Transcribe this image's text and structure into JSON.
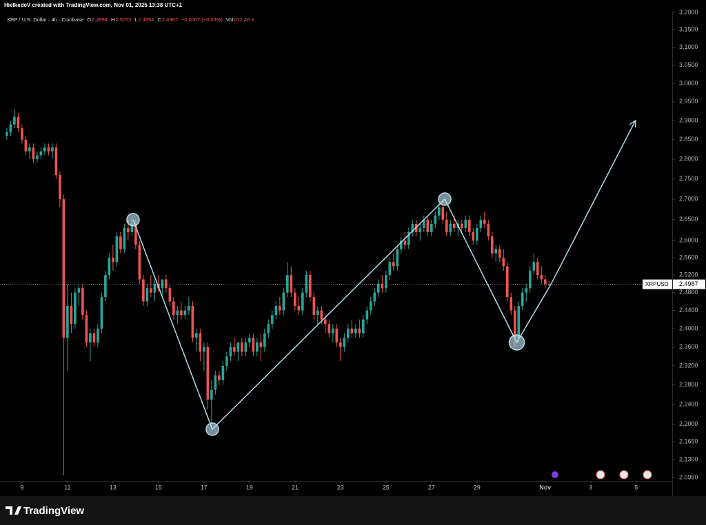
{
  "chart_data": {
    "type": "candlestick",
    "watermark": "HielkedeV created with TradingView.com, Nov 01, 2025 13:38 UTC+1",
    "title": "XRP / U.S. Dollar · 4h · Coinbase",
    "ohlc_labels": [
      "O",
      "H",
      "L",
      "C"
    ],
    "change": "−0.0007 (−0.03%)",
    "volume_label": "Vol",
    "volume": "612.46 K",
    "symbol": "XRPUSD",
    "brand": "TradingView",
    "up_color": "#26a69a",
    "down_color": "#ef5350",
    "drawing_color": "#b5dce8",
    "log_scale": true,
    "ylim": [
      2.096,
      3.2
    ],
    "yticks": [
      {
        "value": 3.2,
        "label": "3.2000"
      },
      {
        "value": 3.15,
        "label": "3.1500"
      },
      {
        "value": 3.1,
        "label": "3.1000"
      },
      {
        "value": 3.05,
        "label": "3.0500"
      },
      {
        "value": 3,
        "label": "3.0000"
      },
      {
        "value": 2.95,
        "label": "2.9500"
      },
      {
        "value": 2.9,
        "label": "2.9000"
      },
      {
        "value": 2.85,
        "label": "2.8500"
      },
      {
        "value": 2.8,
        "label": "2.8000"
      },
      {
        "value": 2.75,
        "label": "2.7500"
      },
      {
        "value": 2.7,
        "label": "2.7000"
      },
      {
        "value": 2.65,
        "label": "2.6500"
      },
      {
        "value": 2.6,
        "label": "2.6000"
      },
      {
        "value": 2.56,
        "label": "2.5600"
      },
      {
        "value": 2.52,
        "label": "2.5200"
      },
      {
        "value": 2.48,
        "label": "2.4800"
      },
      {
        "value": 2.44,
        "label": "2.4400"
      },
      {
        "value": 2.4,
        "label": "2.4000"
      },
      {
        "value": 2.36,
        "label": "2.3600"
      },
      {
        "value": 2.32,
        "label": "2.3200"
      },
      {
        "value": 2.28,
        "label": "2.2800"
      },
      {
        "value": 2.24,
        "label": "2.2400"
      },
      {
        "value": 2.2,
        "label": "2.2000"
      },
      {
        "value": 2.165,
        "label": "2.1650"
      },
      {
        "value": 2.13,
        "label": "2.1300"
      },
      {
        "value": 2.096,
        "label": "2.0960"
      }
    ],
    "xlim": [
      -1.8,
      175.5
    ],
    "xticks": [
      {
        "value": 4,
        "label": "9"
      },
      {
        "value": 16,
        "label": "11"
      },
      {
        "value": 28,
        "label": "13"
      },
      {
        "value": 40,
        "label": "15"
      },
      {
        "value": 52,
        "label": "17"
      },
      {
        "value": 64,
        "label": "19"
      },
      {
        "value": 76,
        "label": "21"
      },
      {
        "value": 88,
        "label": "23"
      },
      {
        "value": 100,
        "label": "25"
      },
      {
        "value": 112,
        "label": "27"
      },
      {
        "value": 124,
        "label": "29"
      },
      {
        "value": 142,
        "label": "Nov"
      },
      {
        "value": 154,
        "label": "3"
      },
      {
        "value": 166,
        "label": "5"
      }
    ],
    "drawing": {
      "x": [
        33.3,
        54.2,
        115.5,
        134.5,
        143.6,
        165.8
      ],
      "y": [
        2.65,
        2.19,
        2.7,
        2.37,
        2.5,
        2.9
      ]
    },
    "ohlc": [
      [
        2.86,
        2.88,
        2.85,
        2.87
      ],
      [
        2.87,
        2.9,
        2.86,
        2.89
      ],
      [
        2.89,
        2.93,
        2.88,
        2.91
      ],
      [
        2.91,
        2.92,
        2.87,
        2.88
      ],
      [
        2.88,
        2.89,
        2.84,
        2.85
      ],
      [
        2.85,
        2.86,
        2.81,
        2.82
      ],
      [
        2.82,
        2.84,
        2.8,
        2.83
      ],
      [
        2.83,
        2.84,
        2.79,
        2.8
      ],
      [
        2.8,
        2.82,
        2.79,
        2.81
      ],
      [
        2.81,
        2.83,
        2.8,
        2.82
      ],
      [
        2.82,
        2.84,
        2.81,
        2.83
      ],
      [
        2.83,
        2.84,
        2.81,
        2.82
      ],
      [
        2.82,
        2.84,
        2.8,
        2.83
      ],
      [
        2.83,
        2.84,
        2.75,
        2.76
      ],
      [
        2.76,
        2.77,
        2.68,
        2.7
      ],
      [
        2.7,
        2.71,
        2.1,
        2.38
      ],
      [
        2.38,
        2.5,
        2.31,
        2.45
      ],
      [
        2.45,
        2.48,
        2.39,
        2.41
      ],
      [
        2.41,
        2.49,
        2.4,
        2.48
      ],
      [
        2.48,
        2.5,
        2.45,
        2.49
      ],
      [
        2.49,
        2.5,
        2.42,
        2.43
      ],
      [
        2.43,
        2.44,
        2.36,
        2.37
      ],
      [
        2.37,
        2.4,
        2.33,
        2.39
      ],
      [
        2.39,
        2.4,
        2.36,
        2.37
      ],
      [
        2.37,
        2.41,
        2.36,
        2.4
      ],
      [
        2.4,
        2.48,
        2.39,
        2.47
      ],
      [
        2.47,
        2.53,
        2.46,
        2.52
      ],
      [
        2.52,
        2.57,
        2.51,
        2.56
      ],
      [
        2.56,
        2.59,
        2.53,
        2.55
      ],
      [
        2.55,
        2.62,
        2.54,
        2.61
      ],
      [
        2.61,
        2.62,
        2.57,
        2.58
      ],
      [
        2.58,
        2.64,
        2.57,
        2.63
      ],
      [
        2.63,
        2.65,
        2.6,
        2.62
      ],
      [
        2.62,
        2.66,
        2.61,
        2.64
      ],
      [
        2.64,
        2.65,
        2.58,
        2.59
      ],
      [
        2.59,
        2.6,
        2.5,
        2.51
      ],
      [
        2.51,
        2.52,
        2.45,
        2.46
      ],
      [
        2.46,
        2.5,
        2.45,
        2.49
      ],
      [
        2.49,
        2.52,
        2.47,
        2.48
      ],
      [
        2.48,
        2.51,
        2.46,
        2.5
      ],
      [
        2.5,
        2.52,
        2.48,
        2.49
      ],
      [
        2.49,
        2.51,
        2.47,
        2.51
      ],
      [
        2.51,
        2.52,
        2.48,
        2.49
      ],
      [
        2.49,
        2.5,
        2.45,
        2.46
      ],
      [
        2.46,
        2.47,
        2.42,
        2.43
      ],
      [
        2.43,
        2.45,
        2.41,
        2.44
      ],
      [
        2.44,
        2.46,
        2.42,
        2.43
      ],
      [
        2.43,
        2.45,
        2.42,
        2.44
      ],
      [
        2.44,
        2.47,
        2.43,
        2.45
      ],
      [
        2.45,
        2.46,
        2.37,
        2.38
      ],
      [
        2.38,
        2.4,
        2.35,
        2.39
      ],
      [
        2.39,
        2.4,
        2.33,
        2.35
      ],
      [
        2.35,
        2.37,
        2.31,
        2.36
      ],
      [
        2.36,
        2.37,
        2.23,
        2.25
      ],
      [
        2.25,
        2.29,
        2.2,
        2.27
      ],
      [
        2.27,
        2.31,
        2.26,
        2.3
      ],
      [
        2.3,
        2.31,
        2.28,
        2.29
      ],
      [
        2.29,
        2.33,
        2.28,
        2.32
      ],
      [
        2.32,
        2.35,
        2.31,
        2.34
      ],
      [
        2.34,
        2.37,
        2.33,
        2.36
      ],
      [
        2.36,
        2.38,
        2.34,
        2.35
      ],
      [
        2.35,
        2.37,
        2.33,
        2.37
      ],
      [
        2.37,
        2.38,
        2.34,
        2.35
      ],
      [
        2.35,
        2.38,
        2.34,
        2.37
      ],
      [
        2.37,
        2.39,
        2.36,
        2.38
      ],
      [
        2.38,
        2.39,
        2.34,
        2.35
      ],
      [
        2.35,
        2.38,
        2.34,
        2.37
      ],
      [
        2.37,
        2.39,
        2.33,
        2.36
      ],
      [
        2.36,
        2.4,
        2.35,
        2.39
      ],
      [
        2.39,
        2.42,
        2.38,
        2.41
      ],
      [
        2.41,
        2.44,
        2.4,
        2.43
      ],
      [
        2.43,
        2.46,
        2.42,
        2.45
      ],
      [
        2.45,
        2.47,
        2.43,
        2.44
      ],
      [
        2.44,
        2.49,
        2.43,
        2.48
      ],
      [
        2.48,
        2.55,
        2.47,
        2.52
      ],
      [
        2.52,
        2.54,
        2.47,
        2.48
      ],
      [
        2.48,
        2.49,
        2.44,
        2.45
      ],
      [
        2.45,
        2.47,
        2.43,
        2.44
      ],
      [
        2.44,
        2.49,
        2.43,
        2.48
      ],
      [
        2.48,
        2.53,
        2.47,
        2.52
      ],
      [
        2.52,
        2.53,
        2.46,
        2.47
      ],
      [
        2.47,
        2.48,
        2.42,
        2.43
      ],
      [
        2.43,
        2.45,
        2.41,
        2.44
      ],
      [
        2.44,
        2.45,
        2.41,
        2.42
      ],
      [
        2.42,
        2.43,
        2.39,
        2.41
      ],
      [
        2.41,
        2.42,
        2.38,
        2.39
      ],
      [
        2.39,
        2.41,
        2.37,
        2.4
      ],
      [
        2.4,
        2.41,
        2.36,
        2.37
      ],
      [
        2.37,
        2.38,
        2.33,
        2.36
      ],
      [
        2.36,
        2.39,
        2.35,
        2.38
      ],
      [
        2.38,
        2.41,
        2.37,
        2.4
      ],
      [
        2.4,
        2.42,
        2.38,
        2.39
      ],
      [
        2.39,
        2.41,
        2.38,
        2.4
      ],
      [
        2.4,
        2.42,
        2.38,
        2.39
      ],
      [
        2.39,
        2.43,
        2.38,
        2.42
      ],
      [
        2.42,
        2.45,
        2.41,
        2.44
      ],
      [
        2.44,
        2.47,
        2.43,
        2.46
      ],
      [
        2.46,
        2.49,
        2.45,
        2.48
      ],
      [
        2.48,
        2.51,
        2.47,
        2.5
      ],
      [
        2.5,
        2.52,
        2.48,
        2.49
      ],
      [
        2.49,
        2.53,
        2.48,
        2.52
      ],
      [
        2.52,
        2.56,
        2.51,
        2.55
      ],
      [
        2.55,
        2.57,
        2.53,
        2.54
      ],
      [
        2.54,
        2.59,
        2.53,
        2.58
      ],
      [
        2.58,
        2.61,
        2.57,
        2.6
      ],
      [
        2.6,
        2.62,
        2.58,
        2.59
      ],
      [
        2.59,
        2.63,
        2.58,
        2.62
      ],
      [
        2.62,
        2.65,
        2.61,
        2.64
      ],
      [
        2.64,
        2.65,
        2.61,
        2.62
      ],
      [
        2.62,
        2.64,
        2.6,
        2.63
      ],
      [
        2.63,
        2.66,
        2.62,
        2.65
      ],
      [
        2.65,
        2.66,
        2.61,
        2.62
      ],
      [
        2.62,
        2.65,
        2.61,
        2.64
      ],
      [
        2.64,
        2.67,
        2.63,
        2.66
      ],
      [
        2.66,
        2.69,
        2.65,
        2.68
      ],
      [
        2.68,
        2.7,
        2.64,
        2.65
      ],
      [
        2.65,
        2.67,
        2.61,
        2.62
      ],
      [
        2.62,
        2.65,
        2.61,
        2.64
      ],
      [
        2.64,
        2.66,
        2.62,
        2.63
      ],
      [
        2.63,
        2.65,
        2.61,
        2.64
      ],
      [
        2.64,
        2.65,
        2.62,
        2.63
      ],
      [
        2.63,
        2.66,
        2.62,
        2.65
      ],
      [
        2.65,
        2.66,
        2.61,
        2.62
      ],
      [
        2.62,
        2.63,
        2.59,
        2.6
      ],
      [
        2.6,
        2.64,
        2.59,
        2.63
      ],
      [
        2.63,
        2.66,
        2.62,
        2.65
      ],
      [
        2.65,
        2.67,
        2.63,
        2.64
      ],
      [
        2.64,
        2.65,
        2.6,
        2.61
      ],
      [
        2.61,
        2.62,
        2.56,
        2.57
      ],
      [
        2.57,
        2.59,
        2.55,
        2.58
      ],
      [
        2.58,
        2.59,
        2.55,
        2.56
      ],
      [
        2.56,
        2.58,
        2.53,
        2.54
      ],
      [
        2.54,
        2.55,
        2.46,
        2.47
      ],
      [
        2.47,
        2.48,
        2.43,
        2.44
      ],
      [
        2.44,
        2.45,
        2.36,
        2.38
      ],
      [
        2.38,
        2.46,
        2.37,
        2.45
      ],
      [
        2.45,
        2.49,
        2.44,
        2.48
      ],
      [
        2.48,
        2.5,
        2.46,
        2.49
      ],
      [
        2.49,
        2.54,
        2.48,
        2.53
      ],
      [
        2.53,
        2.57,
        2.52,
        2.55
      ],
      [
        2.55,
        2.56,
        2.51,
        2.52
      ],
      [
        2.52,
        2.54,
        2.5,
        2.51
      ],
      [
        2.51,
        2.52,
        2.49,
        2.4994
      ],
      [
        2.4994,
        2.5053,
        2.4954,
        2.4987
      ]
    ]
  }
}
